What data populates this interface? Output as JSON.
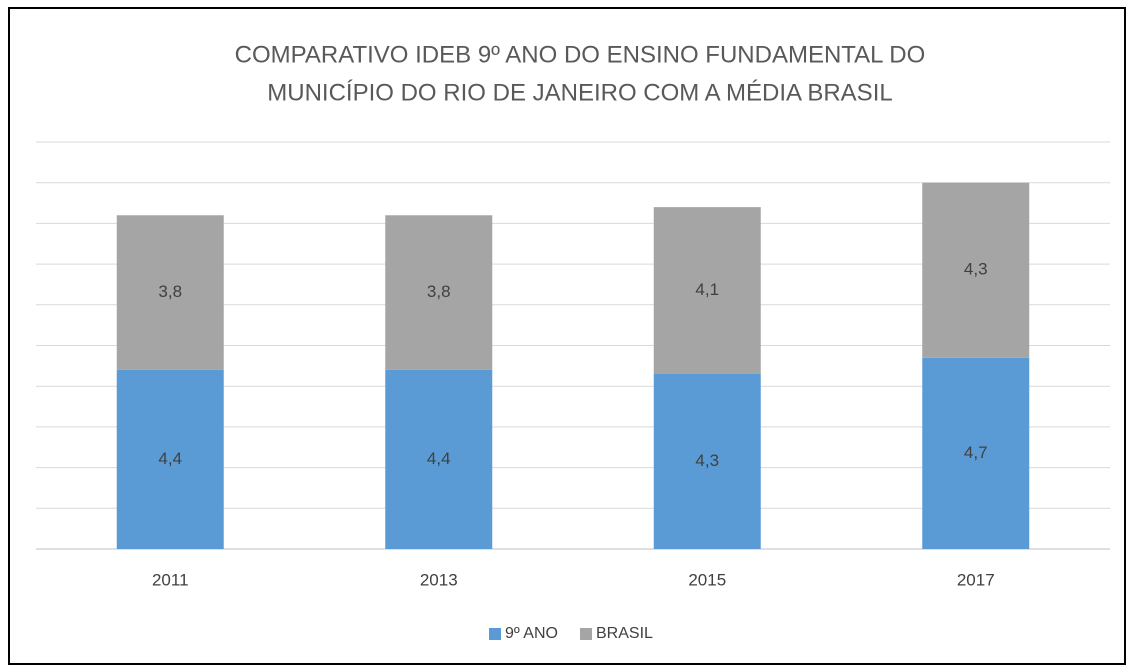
{
  "chart_data": {
    "type": "stacked_bar",
    "title": [
      "COMPARATIVO IDEB 9º ANO DO ENSINO FUNDAMENTAL DO",
      "MUNICÍPIO DO RIO DE JANEIRO COM A MÉDIA BRASIL"
    ],
    "categories": [
      "2011",
      "2013",
      "2015",
      "2017"
    ],
    "series": [
      {
        "name": "9º ANO",
        "color": "#5b9bd5",
        "values": [
          4.4,
          4.4,
          4.3,
          4.7
        ],
        "value_labels": [
          "4,4",
          "4,4",
          "4,3",
          "4,7"
        ]
      },
      {
        "name": "BRASIL",
        "color": "#a5a5a5",
        "values": [
          3.8,
          3.8,
          4.1,
          4.3
        ],
        "value_labels": [
          "3,8",
          "3,8",
          "4,1",
          "4,3"
        ]
      }
    ],
    "ylim": [
      0,
      10
    ],
    "yticks": [
      0,
      1,
      2,
      3,
      4,
      5,
      6,
      7,
      8,
      9,
      10
    ],
    "grid": true,
    "legend": "bottom"
  }
}
